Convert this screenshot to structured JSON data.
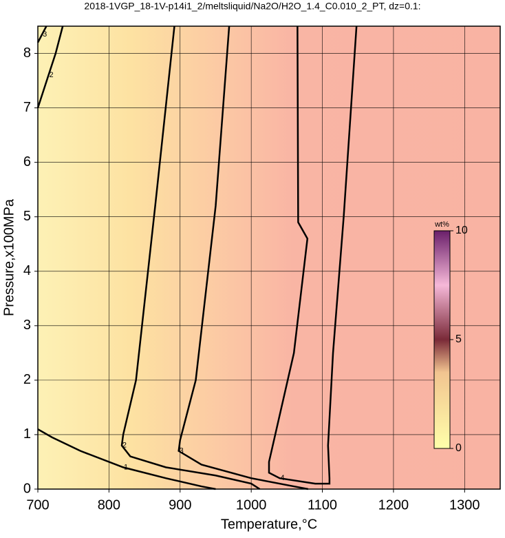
{
  "chart_data": {
    "type": "contour",
    "title": "2018-1VGP_18-1V-p14i1_2/meltsliquid/Na2O/H2O_1.4_C0.010_2_PT, dz=0.1:",
    "x_label": "Temperature,°C",
    "y_label": "Pressure,x100MPa",
    "xlim": [
      700,
      1350
    ],
    "xticks": [
      700,
      800,
      900,
      1000,
      1100,
      1200,
      1300
    ],
    "ylim": [
      0,
      8.5
    ],
    "yticks": [
      0,
      1,
      2,
      3,
      4,
      5,
      6,
      7,
      8
    ],
    "grid": true,
    "contours": [
      {
        "level": 1,
        "x": [
          700,
          720,
          760,
          820,
          880,
          930,
          950
        ],
        "y": [
          1.1,
          0.95,
          0.7,
          0.4,
          0.2,
          0.05,
          0
        ]
      },
      {
        "level": 2,
        "x": [
          892,
          865,
          838,
          820,
          818,
          830,
          880,
          950,
          1000,
          1012
        ],
        "y": [
          8.5,
          5.2,
          2.0,
          1.0,
          0.8,
          0.6,
          0.4,
          0.25,
          0.1,
          0
        ]
      },
      {
        "level": 3,
        "x": [
          969,
          950,
          922,
          900,
          898,
          930,
          1000,
          1060,
          1080
        ],
        "y": [
          8.5,
          5.2,
          2.0,
          0.9,
          0.7,
          0.45,
          0.2,
          0.05,
          0
        ]
      },
      {
        "level": 4,
        "x": [
          1065,
          1066,
          1079,
          1060,
          1025,
          1025,
          1040,
          1090,
          1110,
          1110,
          1108,
          1115,
          1130,
          1148
        ],
        "y": [
          8.5,
          4.9,
          4.6,
          2.5,
          0.5,
          0.3,
          0.2,
          0.1,
          0.1,
          0.2,
          0.8,
          2.5,
          5,
          8.5
        ]
      },
      {
        "level": 2,
        "x": [
          700,
          715,
          725,
          735
        ],
        "y": [
          7.0,
          7.6,
          8.0,
          8.5
        ]
      },
      {
        "level": 3,
        "x": [
          700,
          706,
          712
        ],
        "y": [
          8.2,
          8.35,
          8.5
        ]
      }
    ],
    "colorbar": {
      "label": "wt%",
      "lim": [
        0,
        10
      ],
      "ticks": [
        0,
        5,
        10
      ]
    }
  }
}
